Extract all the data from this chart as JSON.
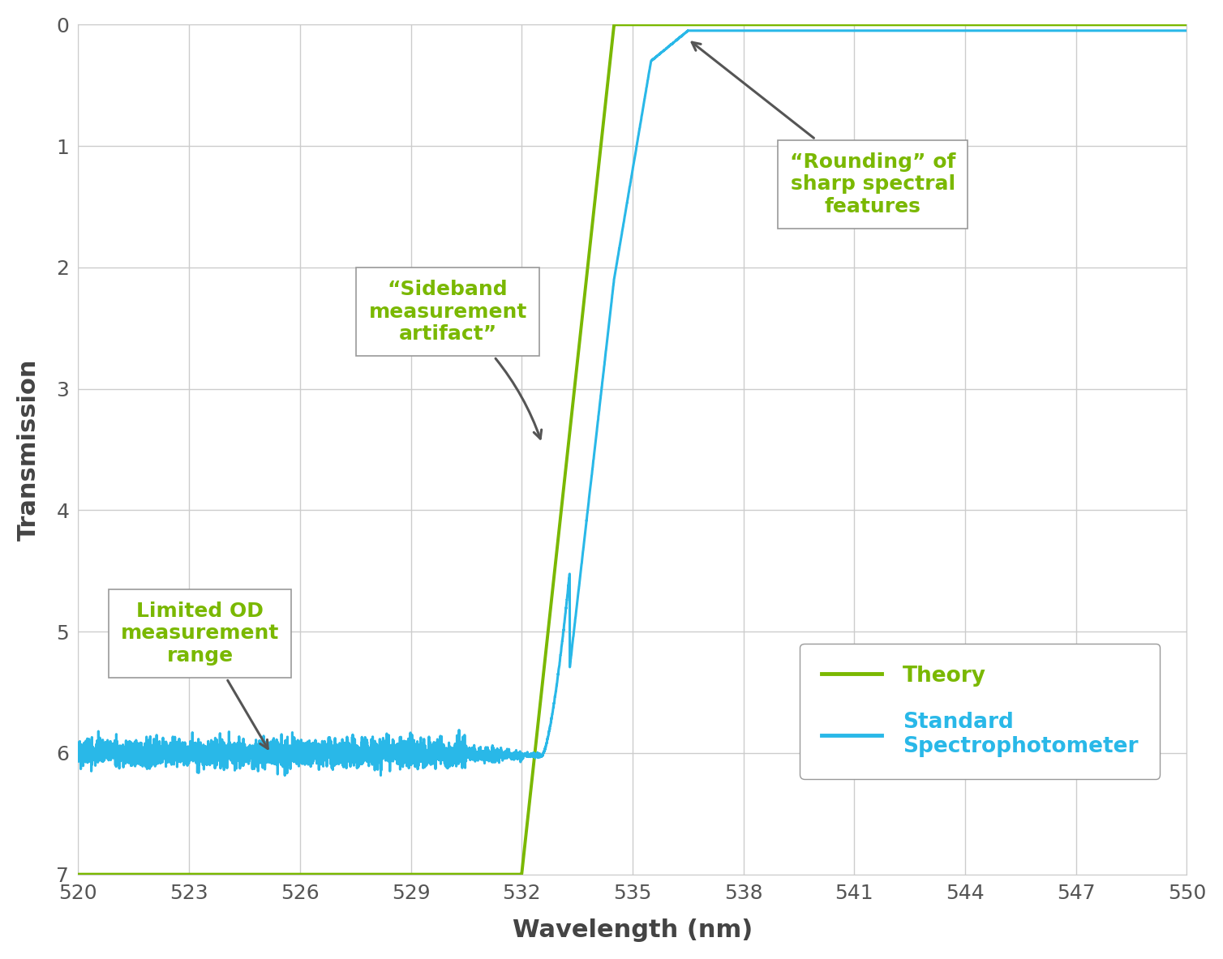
{
  "xlim": [
    520,
    550
  ],
  "ylim": [
    7,
    0
  ],
  "xticks": [
    520,
    523,
    526,
    529,
    532,
    535,
    538,
    541,
    544,
    547,
    550
  ],
  "yticks": [
    0,
    1,
    2,
    3,
    4,
    5,
    6,
    7
  ],
  "xlabel": "Wavelength (nm)",
  "ylabel": "Transmission",
  "theory_color": "#7ab800",
  "spectro_color": "#29b8e8",
  "annotation_color": "#555555",
  "grid_color": "#cccccc",
  "background_color": "#ffffff",
  "annotation1_text": "“Rounding” of\nsharp spectral\nfeatures",
  "annotation2_text": "“Sideband\nmeasurement\nartifact”",
  "annotation3_text": "Limited OD\nmeasurement\nrange",
  "legend_theory": "Theory",
  "legend_spectro": "Standard\nSpectrophotometer"
}
